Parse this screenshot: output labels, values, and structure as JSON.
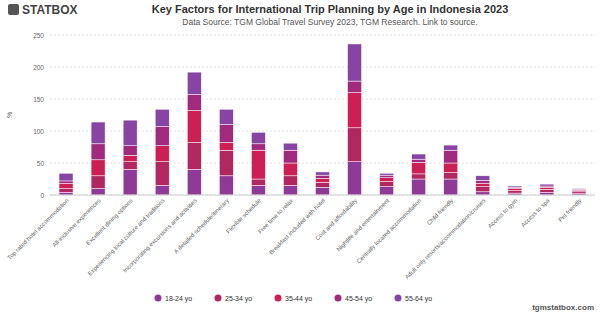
{
  "chart_data": {
    "type": "bar",
    "stacked": true,
    "grid": true,
    "legend": "bottom",
    "title": "Key Factors for International Trip Planning by Age in Indonesia 2023",
    "subtitle": "Data Source: TGM Global Travel Survey 2023, TGM Research. Link to source.",
    "y_label": "%",
    "annotations": [
      "STATBOX",
      "tgmstatbox.com"
    ],
    "categories": [
      "Top rated hotel accommodation",
      "All-inclusive experiences",
      "Excellent dining options",
      "Experiencing local culture and traditions",
      "Incorporating excursions and activities",
      "A detailed schedule/itinerary",
      "Flexible schedule",
      "Free time to relax",
      "Breakfast included with hotel",
      "Cost and affordability",
      "Nightlife and entertainment",
      "Centrally located accommodation",
      "Child friendly",
      "Adult only resorts/accommodation/cruises",
      "Access to gym",
      "Access to spa",
      "Pet friendly"
    ],
    "series": [
      {
        "name": "18-24 yo",
        "color": "#8e3a96",
        "values": [
          4,
          10,
          40,
          15,
          40,
          30,
          15,
          15,
          12,
          52,
          13,
          25,
          25,
          5,
          3,
          4,
          2
        ]
      },
      {
        "name": "25-34 yo",
        "color": "#b12760",
        "values": [
          6,
          20,
          12,
          37,
          42,
          40,
          10,
          15,
          8,
          53,
          8,
          8,
          10,
          8,
          4,
          5,
          3
        ]
      },
      {
        "name": "35-44 yo",
        "color": "#cb1f55",
        "values": [
          8,
          25,
          10,
          25,
          50,
          12,
          45,
          20,
          6,
          55,
          6,
          18,
          15,
          5,
          3,
          3,
          2
        ]
      },
      {
        "name": "45-54 yo",
        "color": "#a22a7c",
        "values": [
          4,
          25,
          15,
          30,
          25,
          28,
          10,
          20,
          5,
          18,
          4,
          5,
          20,
          5,
          2,
          2,
          2
        ]
      },
      {
        "name": "55-64 yo",
        "color": "#8745a3",
        "values": [
          12,
          34,
          40,
          27,
          35,
          24,
          18,
          11,
          5,
          58,
          3,
          8,
          8,
          7,
          2,
          3,
          1
        ]
      }
    ],
    "ylim": [
      0,
      250
    ],
    "yticks": [
      0,
      50,
      100,
      150,
      200,
      250
    ]
  }
}
